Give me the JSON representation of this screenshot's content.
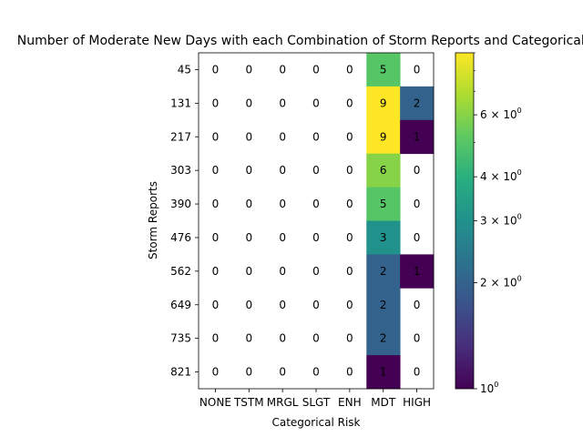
{
  "chart_data": {
    "type": "heatmap",
    "title": "Number of Moderate New Days with each Combination of Storm Reports and Categorical Risk",
    "xlabel": "Categorical Risk",
    "ylabel": "Storm Reports",
    "x_categories": [
      "NONE",
      "TSTM",
      "MRGL",
      "SLGT",
      "ENH",
      "MDT",
      "HIGH"
    ],
    "y_categories": [
      "45",
      "131",
      "217",
      "303",
      "390",
      "476",
      "562",
      "649",
      "735",
      "821"
    ],
    "values": [
      [
        0,
        0,
        0,
        0,
        0,
        5,
        0
      ],
      [
        0,
        0,
        0,
        0,
        0,
        9,
        2
      ],
      [
        0,
        0,
        0,
        0,
        0,
        9,
        1
      ],
      [
        0,
        0,
        0,
        0,
        0,
        6,
        0
      ],
      [
        0,
        0,
        0,
        0,
        0,
        5,
        0
      ],
      [
        0,
        0,
        0,
        0,
        0,
        3,
        0
      ],
      [
        0,
        0,
        0,
        0,
        0,
        2,
        1
      ],
      [
        0,
        0,
        0,
        0,
        0,
        2,
        0
      ],
      [
        0,
        0,
        0,
        0,
        0,
        2,
        0
      ],
      [
        0,
        0,
        0,
        0,
        0,
        1,
        0
      ]
    ],
    "colormap": "viridis",
    "color_scale": "log",
    "zero_cells": "blank",
    "colorbar": {
      "vmin": 1,
      "vmax": 9,
      "major_ticks": [
        {
          "value": 1,
          "base": "10",
          "exp": "0"
        },
        {
          "value": 2,
          "mant": "2",
          "base": "10",
          "exp": "0"
        },
        {
          "value": 3,
          "mant": "3",
          "base": "10",
          "exp": "0"
        },
        {
          "value": 4,
          "mant": "4",
          "base": "10",
          "exp": "0"
        },
        {
          "value": 6,
          "mant": "6",
          "base": "10",
          "exp": "0"
        }
      ],
      "minor_ticks": [
        5,
        7,
        8,
        9
      ]
    }
  }
}
